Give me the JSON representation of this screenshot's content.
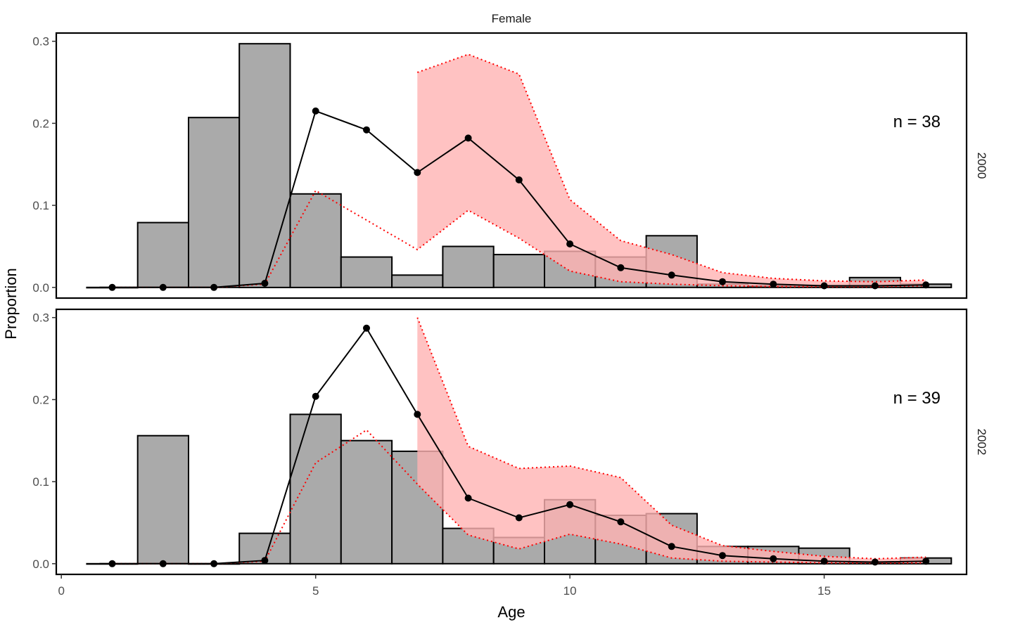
{
  "chart_data": {
    "type": "bar",
    "facet_title": "Female",
    "xlabel": "Age",
    "ylabel": "Proportion",
    "xlim": [
      -0.1,
      17.8
    ],
    "ylim": [
      -0.013,
      0.31
    ],
    "x_ticks": [
      0,
      5,
      10,
      15
    ],
    "y_ticks": [
      0.0,
      0.1,
      0.2,
      0.3
    ],
    "y_tick_labels": [
      "0.0",
      "0.1",
      "0.2",
      "0.3"
    ],
    "grid": false,
    "colors": {
      "bar_fill": "#aaaaaa",
      "bar_stroke": "#000000",
      "band_fill": "#ffb3b3",
      "band_line": "#ff0000",
      "model_line": "#000000"
    },
    "panels": [
      {
        "year": "2000",
        "annotation": "n = 38",
        "ages": [
          1,
          2,
          3,
          4,
          5,
          6,
          7,
          8,
          9,
          10,
          11,
          12,
          13,
          14,
          15,
          16,
          17
        ],
        "observed": [
          0.0,
          0.079,
          0.207,
          0.297,
          0.114,
          0.037,
          0.015,
          0.05,
          0.04,
          0.044,
          0.037,
          0.063,
          0.004,
          0.002,
          0.002,
          0.012,
          0.004
        ],
        "expected": [
          0.0,
          0.0,
          0.0,
          0.005,
          0.215,
          0.192,
          0.14,
          0.182,
          0.131,
          0.053,
          0.024,
          0.015,
          0.007,
          0.004,
          0.002,
          0.002,
          0.003
        ],
        "band_lower": [
          0.0,
          0.0,
          0.0,
          0.004,
          0.118,
          0.082,
          0.046,
          0.094,
          0.06,
          0.02,
          0.007,
          0.004,
          0.002,
          0.001,
          0.001,
          0.001,
          0.002
        ],
        "band_upper": [
          null,
          null,
          null,
          null,
          null,
          null,
          0.262,
          0.284,
          0.26,
          0.107,
          0.057,
          0.04,
          0.018,
          0.011,
          0.008,
          0.007,
          0.009
        ]
      },
      {
        "year": "2002",
        "annotation": "n = 39",
        "ages": [
          1,
          2,
          3,
          4,
          5,
          6,
          7,
          8,
          9,
          10,
          11,
          12,
          13,
          14,
          15,
          16,
          17
        ],
        "observed": [
          0.0,
          0.156,
          0.0,
          0.037,
          0.182,
          0.15,
          0.137,
          0.043,
          0.032,
          0.078,
          0.059,
          0.061,
          0.021,
          0.021,
          0.019,
          0.001,
          0.007
        ],
        "expected": [
          0.0,
          0.0,
          0.0,
          0.004,
          0.204,
          0.287,
          0.182,
          0.08,
          0.056,
          0.072,
          0.051,
          0.021,
          0.01,
          0.006,
          0.003,
          0.002,
          0.003
        ],
        "band_lower": [
          0.0,
          0.0,
          0.0,
          0.003,
          0.123,
          0.163,
          0.097,
          0.035,
          0.018,
          0.036,
          0.024,
          0.007,
          0.003,
          0.002,
          0.001,
          0.001,
          0.001
        ],
        "band_upper": [
          null,
          null,
          null,
          null,
          null,
          null,
          0.3,
          0.143,
          0.116,
          0.119,
          0.105,
          0.047,
          0.022,
          0.015,
          0.009,
          0.006,
          0.008
        ]
      }
    ]
  }
}
